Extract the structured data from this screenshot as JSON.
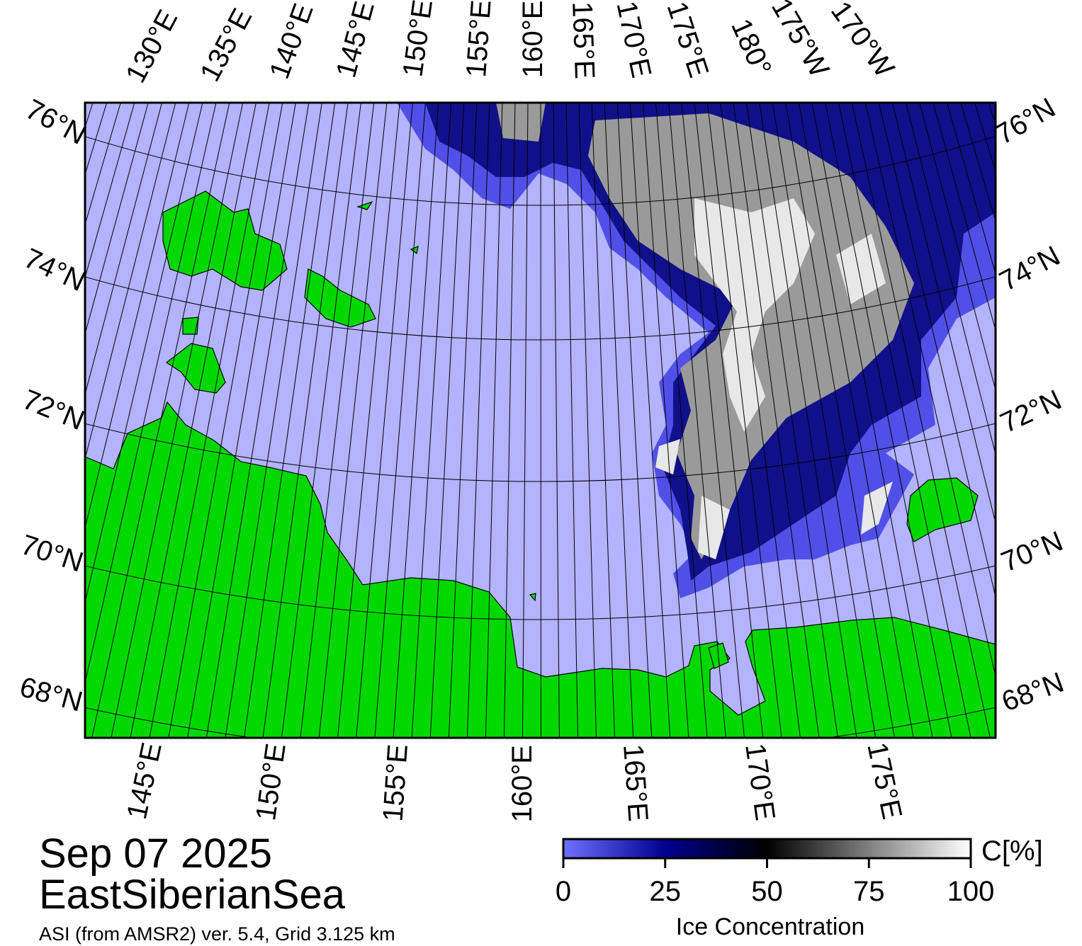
{
  "map": {
    "top_lon_labels": [
      "130°E",
      "135°E",
      "140°E",
      "145°E",
      "150°E",
      "155°E",
      "160°E",
      "165°E",
      "170°E",
      "175°E",
      "180°",
      "175°W",
      "170°W"
    ],
    "bottom_lon_labels": [
      "145°E",
      "150°E",
      "155°E",
      "160°E",
      "165°E",
      "170°E",
      "175°E"
    ],
    "left_lat_labels": [
      "76°N",
      "74°N",
      "72°N",
      "70°N",
      "68°N"
    ],
    "right_lat_labels": [
      "76°N",
      "74°N",
      "72°N",
      "70°N",
      "68°N"
    ]
  },
  "title": {
    "date": "Sep 07 2025",
    "region": "EastSiberianSea",
    "source": "ASI (from AMSR2) ver. 5.4,  Grid 3.125 km"
  },
  "colorbar": {
    "unit": "C[%]",
    "label": "Ice Concentration",
    "lim": [
      0,
      100
    ],
    "ticks": [
      0,
      25,
      50,
      75,
      100
    ]
  }
}
